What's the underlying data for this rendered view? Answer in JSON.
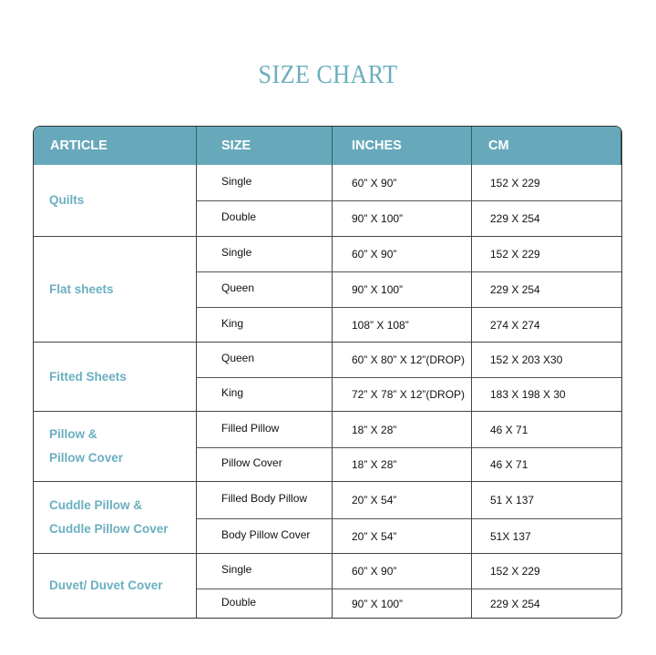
{
  "title": "SIZE CHART",
  "colors": {
    "header_bg": "#67a9ba",
    "accent_text": "#6aafc0"
  },
  "headers": [
    "ARTICLE",
    "SIZE",
    "INCHES",
    "CM"
  ],
  "groups": [
    {
      "article": [
        "Quilts"
      ],
      "rows": [
        {
          "size": "Single",
          "inches": "60” X 90”",
          "cm": "152 X 229"
        },
        {
          "size": "Double",
          "inches": "90” X 100”",
          "cm": "229 X 254"
        }
      ]
    },
    {
      "article": [
        "Flat sheets"
      ],
      "rows": [
        {
          "size": "Single",
          "inches": "60” X 90”",
          "cm": "152 X 229"
        },
        {
          "size": "Queen",
          "inches": "90” X 100”",
          "cm": "229 X 254"
        },
        {
          "size": "King",
          "inches": "108” X 108”",
          "cm": "274 X 274"
        }
      ]
    },
    {
      "article": [
        "Fitted Sheets"
      ],
      "rows": [
        {
          "size": "Queen",
          "inches": "60” X 80” X 12”(DROP)",
          "cm": "152 X 203 X30"
        },
        {
          "size": "King",
          "inches": "72” X 78” X 12”(DROP)",
          "cm": "183 X 198 X 30"
        }
      ]
    },
    {
      "article": [
        "Pillow &",
        "Pillow Cover"
      ],
      "rows": [
        {
          "size": "Filled Pillow",
          "inches": "18” X 28”",
          "cm": "46 X 71"
        },
        {
          "size": "Pillow Cover",
          "inches": "18” X 28”",
          "cm": "46 X 71"
        }
      ]
    },
    {
      "article": [
        "Cuddle Pillow &",
        "Cuddle Pillow Cover"
      ],
      "rows": [
        {
          "size": "Filled Body Pillow",
          "inches": "20” X 54”",
          "cm": "51 X 137"
        },
        {
          "size": "Body Pillow Cover",
          "inches": "20” X 54”",
          "cm": "51X 137"
        }
      ]
    },
    {
      "article": [
        "Duvet/ Duvet Cover"
      ],
      "rows": [
        {
          "size": "Single",
          "inches": "60” X 90”",
          "cm": "152 X 229"
        },
        {
          "size": "Double",
          "inches": "90” X 100”",
          "cm": "229 X 254"
        }
      ]
    }
  ]
}
